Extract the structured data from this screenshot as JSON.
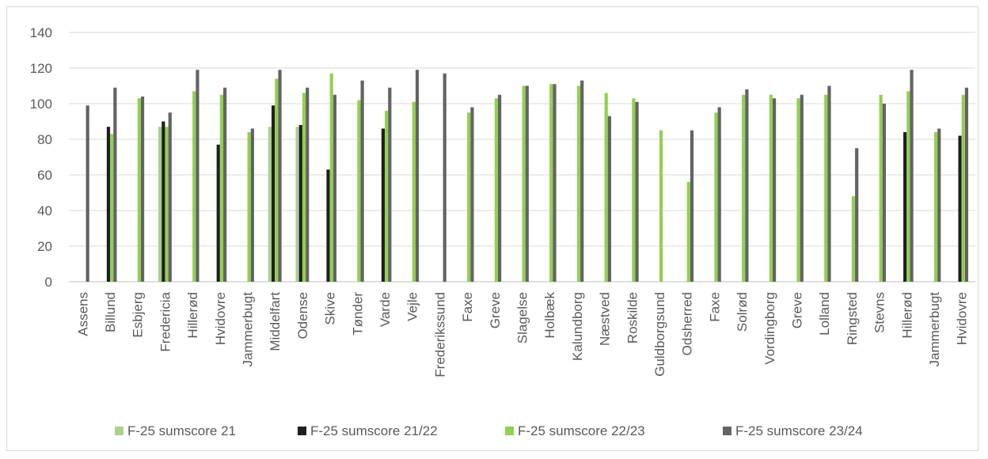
{
  "chart_data": {
    "type": "bar",
    "title": "",
    "xlabel": "",
    "ylabel": "",
    "ylim": [
      0,
      140
    ],
    "yticks": [
      0,
      20,
      40,
      60,
      80,
      100,
      120,
      140
    ],
    "grid": true,
    "legend_position": "bottom",
    "categories": [
      "Assens",
      "Billund",
      "Esbjerg",
      "Fredericia",
      "Hillerød",
      "Hvidovre",
      "Jammerbugt",
      "Middelfart",
      "Odense",
      "Skive",
      "Tønder",
      "Varde",
      "Vejle",
      "Frederikssund",
      "Faxe",
      "Greve",
      "Slagelse",
      "Holbæk",
      "Kalundborg",
      "Næstved",
      "Roskilde",
      "Guldborgsund",
      "Odsherred",
      "Faxe",
      "Solrød",
      "Vordingborg",
      "Greve",
      "Lolland",
      "Ringsted",
      "Stevns",
      "Hillerød",
      "Jammerbugt",
      "Hvidovre"
    ],
    "series": [
      {
        "name": "F-25 sumscore 21",
        "color": "#a9d18e",
        "values": [
          null,
          null,
          null,
          87,
          null,
          null,
          null,
          87,
          87,
          null,
          null,
          null,
          null,
          null,
          null,
          null,
          null,
          null,
          null,
          null,
          null,
          null,
          null,
          null,
          null,
          null,
          null,
          null,
          null,
          null,
          null,
          null,
          null
        ]
      },
      {
        "name": "F-25 sumscore 21/22",
        "color": "#1f1f1f",
        "values": [
          null,
          87,
          null,
          90,
          null,
          77,
          null,
          99,
          88,
          63,
          null,
          86,
          null,
          null,
          null,
          null,
          null,
          null,
          null,
          null,
          null,
          null,
          null,
          null,
          null,
          null,
          null,
          null,
          null,
          null,
          84,
          null,
          82
        ]
      },
      {
        "name": "F-25 sumscore 22/23",
        "color": "#92d050",
        "values": [
          null,
          83,
          103,
          87,
          107,
          105,
          84,
          114,
          106,
          117,
          102,
          96,
          101,
          null,
          95,
          103,
          110,
          111,
          110,
          106,
          103,
          85,
          56,
          95,
          105,
          105,
          103,
          105,
          48,
          105,
          107,
          84,
          105
        ]
      },
      {
        "name": "F-25 sumscore 23/24",
        "color": "#636363",
        "values": [
          99,
          109,
          104,
          95,
          119,
          109,
          86,
          119,
          109,
          105,
          113,
          109,
          119,
          117,
          98,
          105,
          110,
          111,
          113,
          93,
          101,
          null,
          85,
          98,
          108,
          103,
          105,
          110,
          75,
          100,
          119,
          86,
          109
        ]
      }
    ]
  }
}
